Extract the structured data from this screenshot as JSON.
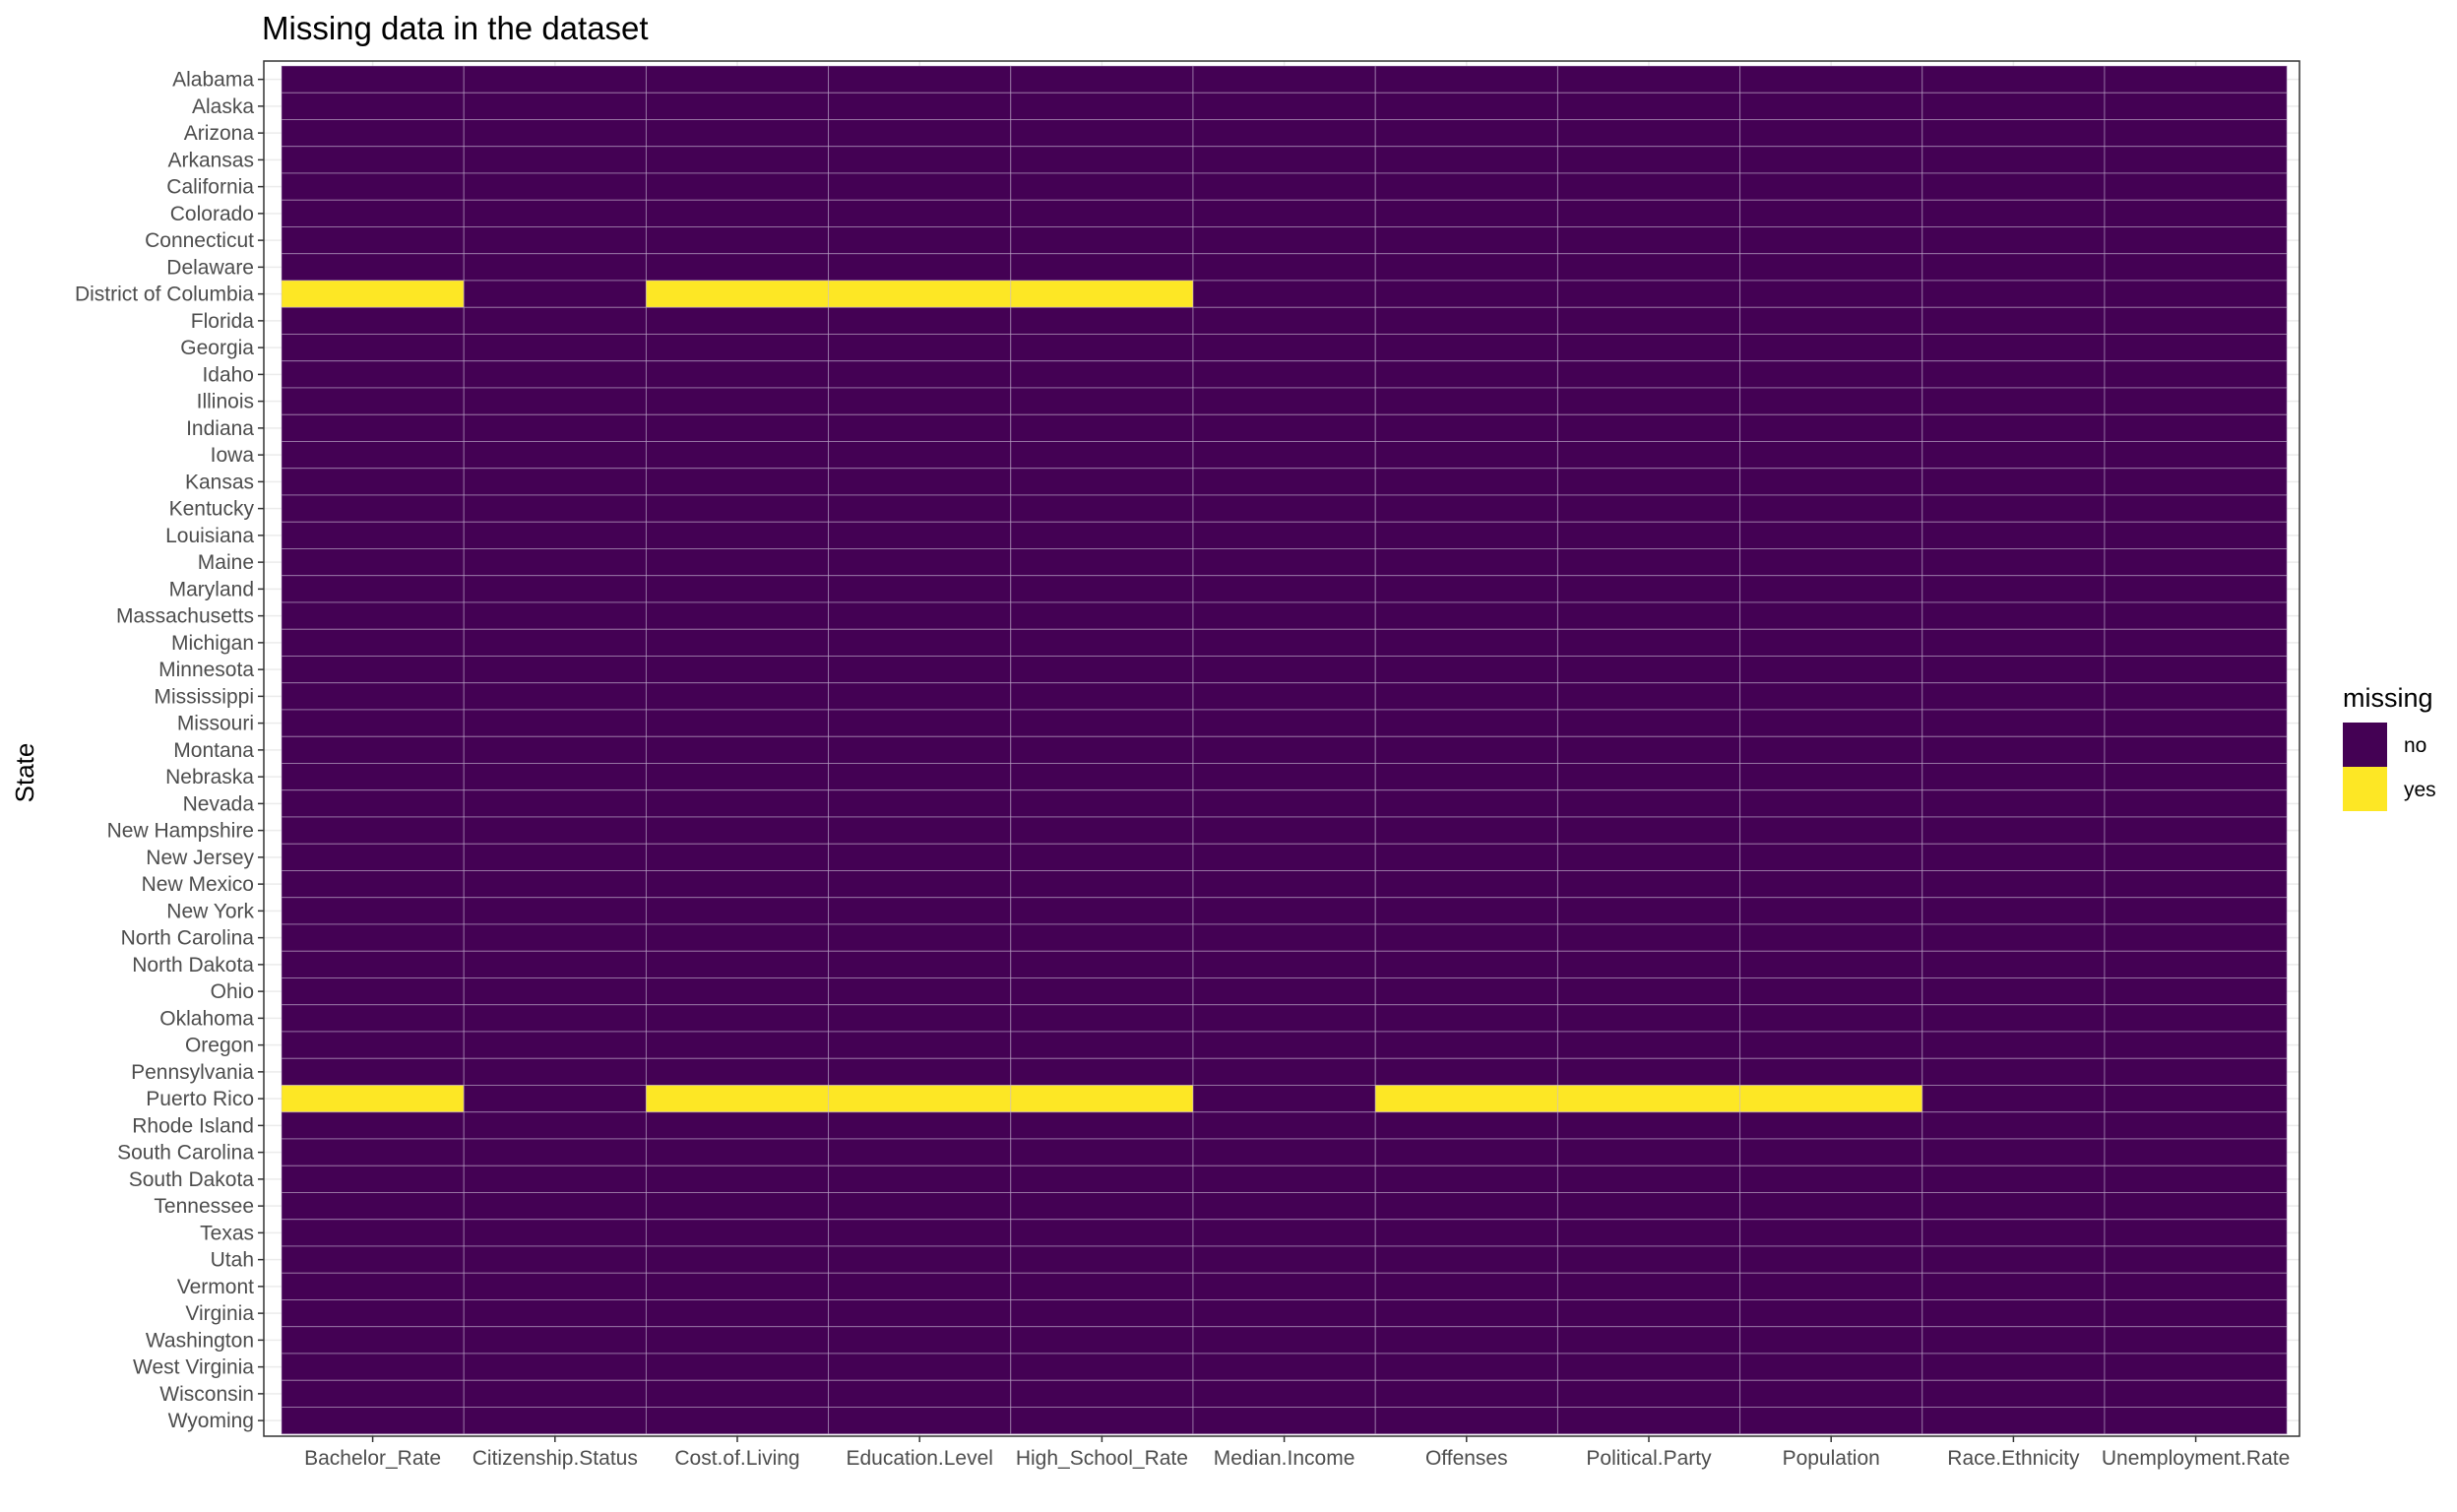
{
  "chart_data": {
    "type": "heatmap",
    "title": "Missing data in the dataset",
    "ylabel": "State",
    "xlabel": "",
    "x_categories": [
      "Bachelor_Rate",
      "Citizenship.Status",
      "Cost.of.Living",
      "Education.Level",
      "High_School_Rate",
      "Median.Income",
      "Offenses",
      "Political.Party",
      "Population",
      "Race.Ethnicity",
      "Unemployment.Rate"
    ],
    "y_categories": [
      "Alabama",
      "Alaska",
      "Arizona",
      "Arkansas",
      "California",
      "Colorado",
      "Connecticut",
      "Delaware",
      "District of Columbia",
      "Florida",
      "Georgia",
      "Idaho",
      "Illinois",
      "Indiana",
      "Iowa",
      "Kansas",
      "Kentucky",
      "Louisiana",
      "Maine",
      "Maryland",
      "Massachusetts",
      "Michigan",
      "Minnesota",
      "Mississippi",
      "Missouri",
      "Montana",
      "Nebraska",
      "Nevada",
      "New Hampshire",
      "New Jersey",
      "New Mexico",
      "New York",
      "North Carolina",
      "North Dakota",
      "Ohio",
      "Oklahoma",
      "Oregon",
      "Pennsylvania",
      "Puerto Rico",
      "Rhode Island",
      "South Carolina",
      "South Dakota",
      "Tennessee",
      "Texas",
      "Utah",
      "Vermont",
      "Virginia",
      "Washington",
      "West Virginia",
      "Wisconsin",
      "Wyoming"
    ],
    "missing": [
      {
        "state": "District of Columbia",
        "variables": [
          "Bachelor_Rate",
          "Cost.of.Living",
          "Education.Level",
          "High_School_Rate"
        ]
      },
      {
        "state": "Puerto Rico",
        "variables": [
          "Bachelor_Rate",
          "Cost.of.Living",
          "Education.Level",
          "High_School_Rate",
          "Offenses",
          "Political.Party",
          "Population"
        ]
      }
    ],
    "legend": {
      "title": "missing",
      "placement": "right",
      "entries": [
        {
          "label": "no",
          "color": "#440154"
        },
        {
          "label": "yes",
          "color": "#FDE725"
        }
      ]
    },
    "grid": true
  }
}
